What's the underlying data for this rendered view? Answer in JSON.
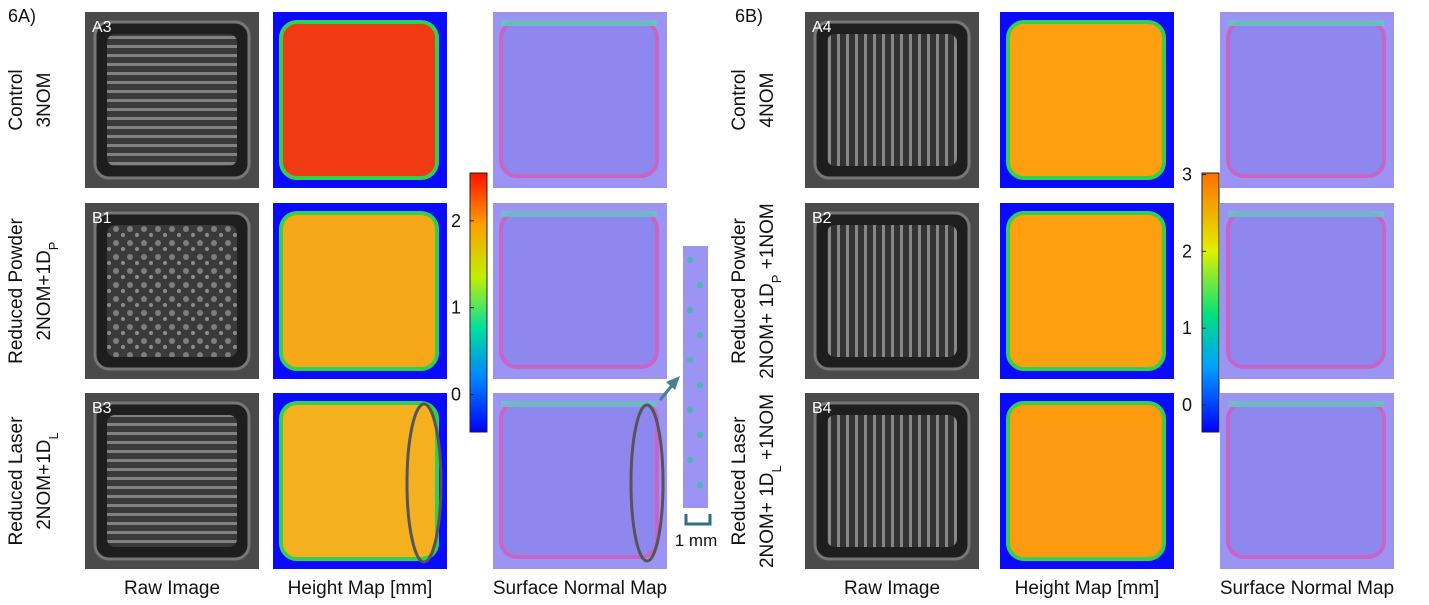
{
  "panels": [
    {
      "label": "6A)",
      "rows": [
        {
          "tag": "A3",
          "name": "Control",
          "recipe": {
            "text": "3NOM"
          }
        },
        {
          "tag": "B1",
          "name": "Reduced Powder",
          "recipe": {
            "text": "2NOM+1D",
            "sub": "P"
          }
        },
        {
          "tag": "B3",
          "name": "Reduced Laser",
          "recipe": {
            "text": "2NOM+1D",
            "sub": "L"
          }
        }
      ],
      "colorbar": {
        "range": [
          -0.43,
          2.55
        ],
        "ticks": [
          0,
          1,
          2
        ]
      },
      "columns": [
        "Raw Image",
        "Height Map [mm]",
        "Surface Normal Map"
      ]
    },
    {
      "label": "6B)",
      "rows": [
        {
          "tag": "A4",
          "name": "Control",
          "recipe": {
            "text": "4NOM"
          }
        },
        {
          "tag": "B2",
          "name": "Reduced Powder",
          "recipe": {
            "text": "2NOM+ 1D",
            "sub": "P",
            "tail": " +1NOM"
          }
        },
        {
          "tag": "B4",
          "name": "Reduced Laser",
          "recipe": {
            "text": "2NOM+ 1D",
            "sub": "L",
            "tail": " +1NOM"
          }
        }
      ],
      "colorbar": {
        "range": [
          -0.35,
          3.02
        ],
        "ticks": [
          0,
          1,
          2,
          3
        ]
      },
      "columns": [
        "Raw Image",
        "Height Map [mm]",
        "Surface Normal Map"
      ]
    }
  ],
  "scale_bar": "1 mm"
}
